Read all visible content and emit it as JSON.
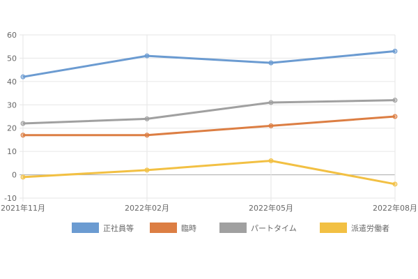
{
  "chart_data": {
    "type": "line",
    "categories": [
      "2021年11月",
      "2022年02月",
      "2022年05月",
      "2022年08月"
    ],
    "ylim": [
      -10,
      60
    ],
    "yticks": [
      60,
      50,
      40,
      30,
      20,
      10,
      0,
      -10
    ],
    "grid": true,
    "legend_position": "bottom",
    "series": [
      {
        "name": "正社員等",
        "color": "#6b9bd1",
        "values": [
          42,
          51,
          48,
          53
        ]
      },
      {
        "name": "臨時",
        "color": "#dc7e43",
        "values": [
          17,
          17,
          21,
          25
        ]
      },
      {
        "name": "パートタイム",
        "color": "#a0a0a0",
        "values": [
          22,
          24,
          31,
          32
        ]
      },
      {
        "name": "派遣労働者",
        "color": "#f2c043",
        "values": [
          -1,
          2,
          6,
          -4
        ]
      }
    ]
  }
}
